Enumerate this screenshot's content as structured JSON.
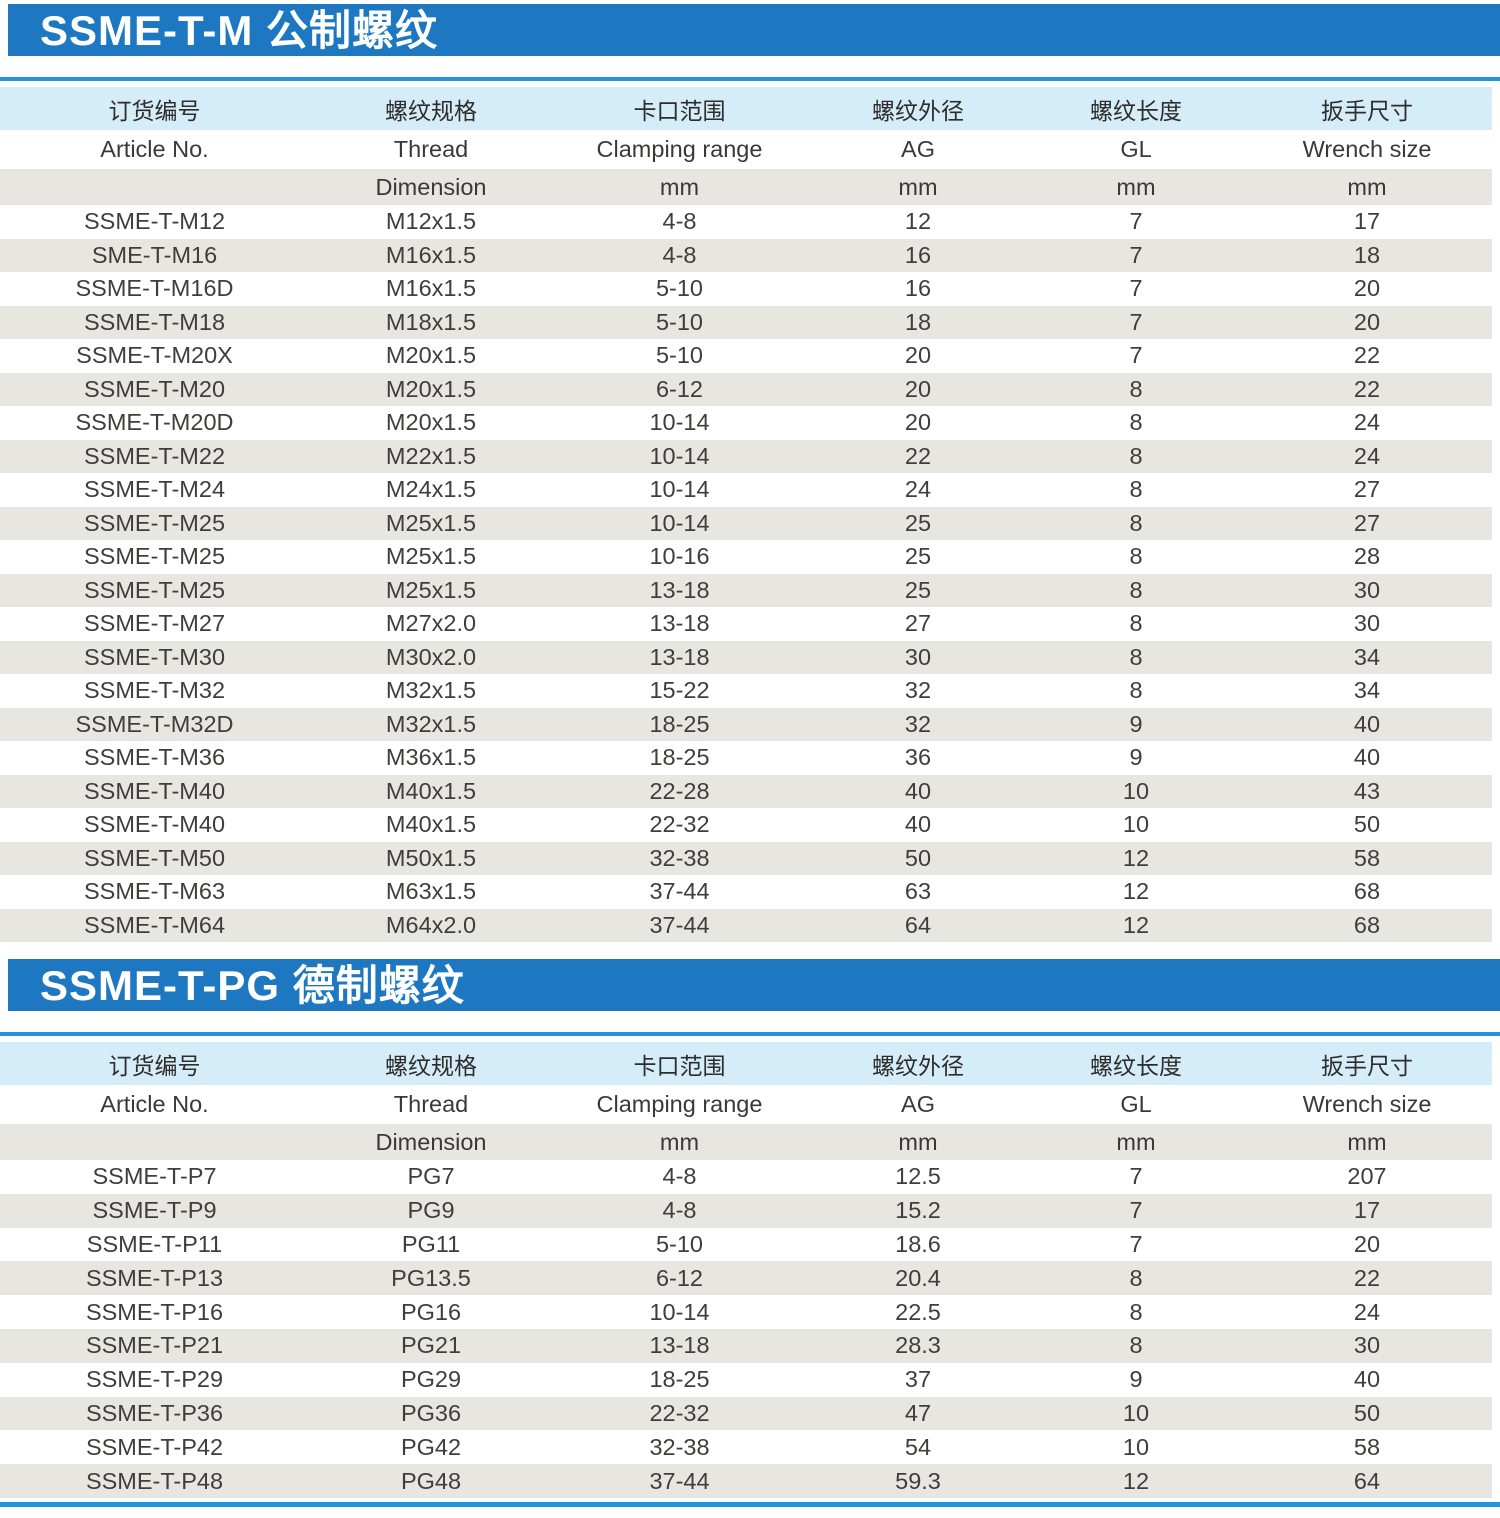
{
  "colors": {
    "section_bar_bg": "#1d78c1",
    "section_bar_text": "#ffffff",
    "accent_line": "#2196df",
    "header_row_bg": "#d5ecf9",
    "stripe_row_bg": "#e7e6e1",
    "body_text": "#3f3e3c"
  },
  "sections": [
    {
      "title": "SSME-T-M 公制螺纹",
      "table": {
        "columns": [
          {
            "zh": "订货编号",
            "en": "Article No.",
            "dim": ""
          },
          {
            "zh": "螺纹规格",
            "en": "Thread",
            "dim": "Dimension"
          },
          {
            "zh": "卡口范围",
            "en": "Clamping range",
            "dim": "mm"
          },
          {
            "zh": "螺纹外径",
            "en": "AG",
            "dim": "mm"
          },
          {
            "zh": "螺纹长度",
            "en": "GL",
            "dim": "mm"
          },
          {
            "zh": "扳手尺寸",
            "en": "Wrench size",
            "dim": "mm"
          }
        ],
        "rows": [
          [
            "SSME-T-M12",
            "M12x1.5",
            "4-8",
            "12",
            "7",
            "17"
          ],
          [
            "SME-T-M16",
            "M16x1.5",
            "4-8",
            "16",
            "7",
            "18"
          ],
          [
            "SSME-T-M16D",
            "M16x1.5",
            "5-10",
            "16",
            "7",
            "20"
          ],
          [
            "SSME-T-M18",
            "M18x1.5",
            "5-10",
            "18",
            "7",
            "20"
          ],
          [
            "SSME-T-M20X",
            "M20x1.5",
            "5-10",
            "20",
            "7",
            "22"
          ],
          [
            "SSME-T-M20",
            "M20x1.5",
            "6-12",
            "20",
            "8",
            "22"
          ],
          [
            "SSME-T-M20D",
            "M20x1.5",
            "10-14",
            "20",
            "8",
            "24"
          ],
          [
            "SSME-T-M22",
            "M22x1.5",
            "10-14",
            "22",
            "8",
            "24"
          ],
          [
            "SSME-T-M24",
            "M24x1.5",
            "10-14",
            "24",
            "8",
            "27"
          ],
          [
            "SSME-T-M25",
            "M25x1.5",
            "10-14",
            "25",
            "8",
            "27"
          ],
          [
            "SSME-T-M25",
            "M25x1.5",
            "10-16",
            "25",
            "8",
            "28"
          ],
          [
            "SSME-T-M25",
            "M25x1.5",
            "13-18",
            "25",
            "8",
            "30"
          ],
          [
            "SSME-T-M27",
            "M27x2.0",
            "13-18",
            "27",
            "8",
            "30"
          ],
          [
            "SSME-T-M30",
            "M30x2.0",
            "13-18",
            "30",
            "8",
            "34"
          ],
          [
            "SSME-T-M32",
            "M32x1.5",
            "15-22",
            "32",
            "8",
            "34"
          ],
          [
            "SSME-T-M32D",
            "M32x1.5",
            "18-25",
            "32",
            "9",
            "40"
          ],
          [
            "SSME-T-M36",
            "M36x1.5",
            "18-25",
            "36",
            "9",
            "40"
          ],
          [
            "SSME-T-M40",
            "M40x1.5",
            "22-28",
            "40",
            "10",
            "43"
          ],
          [
            "SSME-T-M40",
            "M40x1.5",
            "22-32",
            "40",
            "10",
            "50"
          ],
          [
            "SSME-T-M50",
            "M50x1.5",
            "32-38",
            "50",
            "12",
            "58"
          ],
          [
            "SSME-T-M63",
            "M63x1.5",
            "37-44",
            "63",
            "12",
            "68"
          ],
          [
            "SSME-T-M64",
            "M64x2.0",
            "37-44",
            "64",
            "12",
            "68"
          ]
        ]
      }
    },
    {
      "title": "SSME-T-PG 德制螺纹",
      "table": {
        "columns": [
          {
            "zh": "订货编号",
            "en": "Article No.",
            "dim": ""
          },
          {
            "zh": "螺纹规格",
            "en": "Thread",
            "dim": "Dimension"
          },
          {
            "zh": "卡口范围",
            "en": "Clamping range",
            "dim": "mm"
          },
          {
            "zh": "螺纹外径",
            "en": "AG",
            "dim": "mm"
          },
          {
            "zh": "螺纹长度",
            "en": "GL",
            "dim": "mm"
          },
          {
            "zh": "扳手尺寸",
            "en": "Wrench size",
            "dim": "mm"
          }
        ],
        "rows": [
          [
            "SSME-T-P7",
            "PG7",
            "4-8",
            "12.5",
            "7",
            "207"
          ],
          [
            "SSME-T-P9",
            "PG9",
            "4-8",
            "15.2",
            "7",
            "17"
          ],
          [
            "SSME-T-P11",
            "PG11",
            "5-10",
            "18.6",
            "7",
            "20"
          ],
          [
            "SSME-T-P13",
            "PG13.5",
            "6-12",
            "20.4",
            "8",
            "22"
          ],
          [
            "SSME-T-P16",
            "PG16",
            "10-14",
            "22.5",
            "8",
            "24"
          ],
          [
            "SSME-T-P21",
            "PG21",
            "13-18",
            "28.3",
            "8",
            "30"
          ],
          [
            "SSME-T-P29",
            "PG29",
            "18-25",
            "37",
            "9",
            "40"
          ],
          [
            "SSME-T-P36",
            "PG36",
            "22-32",
            "47",
            "10",
            "50"
          ],
          [
            "SSME-T-P42",
            "PG42",
            "32-38",
            "54",
            "10",
            "58"
          ],
          [
            "SSME-T-P48",
            "PG48",
            "37-44",
            "59.3",
            "12",
            "64"
          ]
        ]
      }
    }
  ]
}
